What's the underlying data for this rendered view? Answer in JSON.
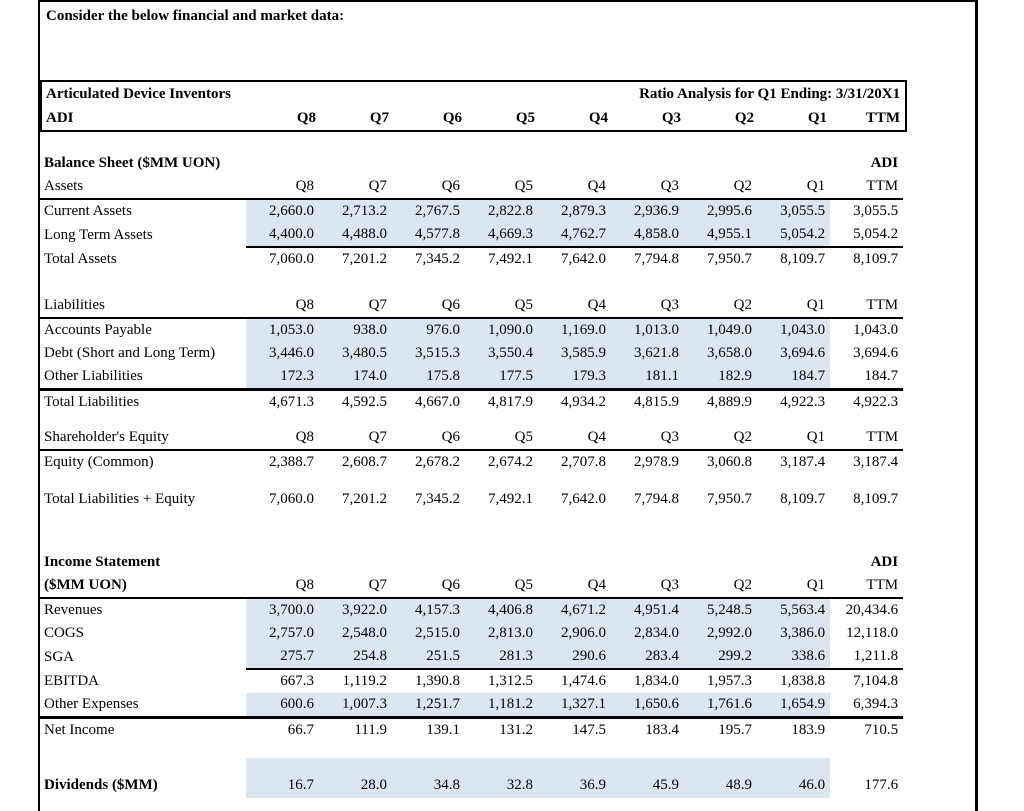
{
  "intro": "Consider the below financial and market data:",
  "colors": {
    "row_highlight": "#dce6f1",
    "border": "#000000"
  },
  "columns": [
    "Q8",
    "Q7",
    "Q6",
    "Q5",
    "Q4",
    "Q3",
    "Q2",
    "Q1",
    "TTM"
  ],
  "header_box": {
    "company": "Articulated Device Inventors",
    "report_title": "Ratio Analysis for Q1 Ending: 3/31/20X1",
    "ticker": "ADI"
  },
  "balance_sheet": {
    "title": "Balance Sheet ($MM UON)",
    "adi": "ADI",
    "assets_header": "Assets",
    "current_assets": {
      "label": "Current Assets",
      "values": [
        "2,660.0",
        "2,713.2",
        "2,767.5",
        "2,822.8",
        "2,879.3",
        "2,936.9",
        "2,995.6",
        "3,055.5",
        "3,055.5"
      ]
    },
    "long_term_assets": {
      "label": "Long Term Assets",
      "values": [
        "4,400.0",
        "4,488.0",
        "4,577.8",
        "4,669.3",
        "4,762.7",
        "4,858.0",
        "4,955.1",
        "5,054.2",
        "5,054.2"
      ]
    },
    "total_assets": {
      "label": "Total Assets",
      "values": [
        "7,060.0",
        "7,201.2",
        "7,345.2",
        "7,492.1",
        "7,642.0",
        "7,794.8",
        "7,950.7",
        "8,109.7",
        "8,109.7"
      ]
    },
    "liabilities_header": "Liabilities",
    "accounts_payable": {
      "label": "Accounts Payable",
      "values": [
        "1,053.0",
        "938.0",
        "976.0",
        "1,090.0",
        "1,169.0",
        "1,013.0",
        "1,049.0",
        "1,043.0",
        "1,043.0"
      ]
    },
    "debt": {
      "label": "Debt (Short and Long Term)",
      "values": [
        "3,446.0",
        "3,480.5",
        "3,515.3",
        "3,550.4",
        "3,585.9",
        "3,621.8",
        "3,658.0",
        "3,694.6",
        "3,694.6"
      ]
    },
    "other_liabilities": {
      "label": "Other Liabilities",
      "values": [
        "172.3",
        "174.0",
        "175.8",
        "177.5",
        "179.3",
        "181.1",
        "182.9",
        "184.7",
        "184.7"
      ]
    },
    "total_liabilities": {
      "label": "Total Liabilities",
      "values": [
        "4,671.3",
        "4,592.5",
        "4,667.0",
        "4,817.9",
        "4,934.2",
        "4,815.9",
        "4,889.9",
        "4,922.3",
        "4,922.3"
      ]
    },
    "equity_header": "Shareholder's Equity",
    "equity_common": {
      "label": "Equity (Common)",
      "values": [
        "2,388.7",
        "2,608.7",
        "2,678.2",
        "2,674.2",
        "2,707.8",
        "2,978.9",
        "3,060.8",
        "3,187.4",
        "3,187.4"
      ]
    },
    "total_liab_equity": {
      "label": "Total Liabilities + Equity",
      "values": [
        "7,060.0",
        "7,201.2",
        "7,345.2",
        "7,492.1",
        "7,642.0",
        "7,794.8",
        "7,950.7",
        "8,109.7",
        "8,109.7"
      ]
    }
  },
  "income_statement": {
    "title": "Income Statement",
    "subtitle": "($MM UON)",
    "adi": "ADI",
    "revenues": {
      "label": "Revenues",
      "values": [
        "3,700.0",
        "3,922.0",
        "4,157.3",
        "4,406.8",
        "4,671.2",
        "4,951.4",
        "5,248.5",
        "5,563.4",
        "20,434.6"
      ]
    },
    "cogs": {
      "label": "COGS",
      "values": [
        "2,757.0",
        "2,548.0",
        "2,515.0",
        "2,813.0",
        "2,906.0",
        "2,834.0",
        "2,992.0",
        "3,386.0",
        "12,118.0"
      ]
    },
    "sga": {
      "label": "SGA",
      "values": [
        "275.7",
        "254.8",
        "251.5",
        "281.3",
        "290.6",
        "283.4",
        "299.2",
        "338.6",
        "1,211.8"
      ]
    },
    "ebitda": {
      "label": "EBITDA",
      "values": [
        "667.3",
        "1,119.2",
        "1,390.8",
        "1,312.5",
        "1,474.6",
        "1,834.0",
        "1,957.3",
        "1,838.8",
        "7,104.8"
      ]
    },
    "other_expenses": {
      "label": "Other Expenses",
      "values": [
        "600.6",
        "1,007.3",
        "1,251.7",
        "1,181.2",
        "1,327.1",
        "1,650.6",
        "1,761.6",
        "1,654.9",
        "6,394.3"
      ]
    },
    "net_income": {
      "label": "Net Income",
      "values": [
        "66.7",
        "111.9",
        "139.1",
        "131.2",
        "147.5",
        "183.4",
        "195.7",
        "183.9",
        "710.5"
      ]
    }
  },
  "dividends": {
    "label": "Dividends ($MM)",
    "values": [
      "16.7",
      "28.0",
      "34.8",
      "32.8",
      "36.9",
      "45.9",
      "48.9",
      "46.0",
      "177.6"
    ]
  }
}
